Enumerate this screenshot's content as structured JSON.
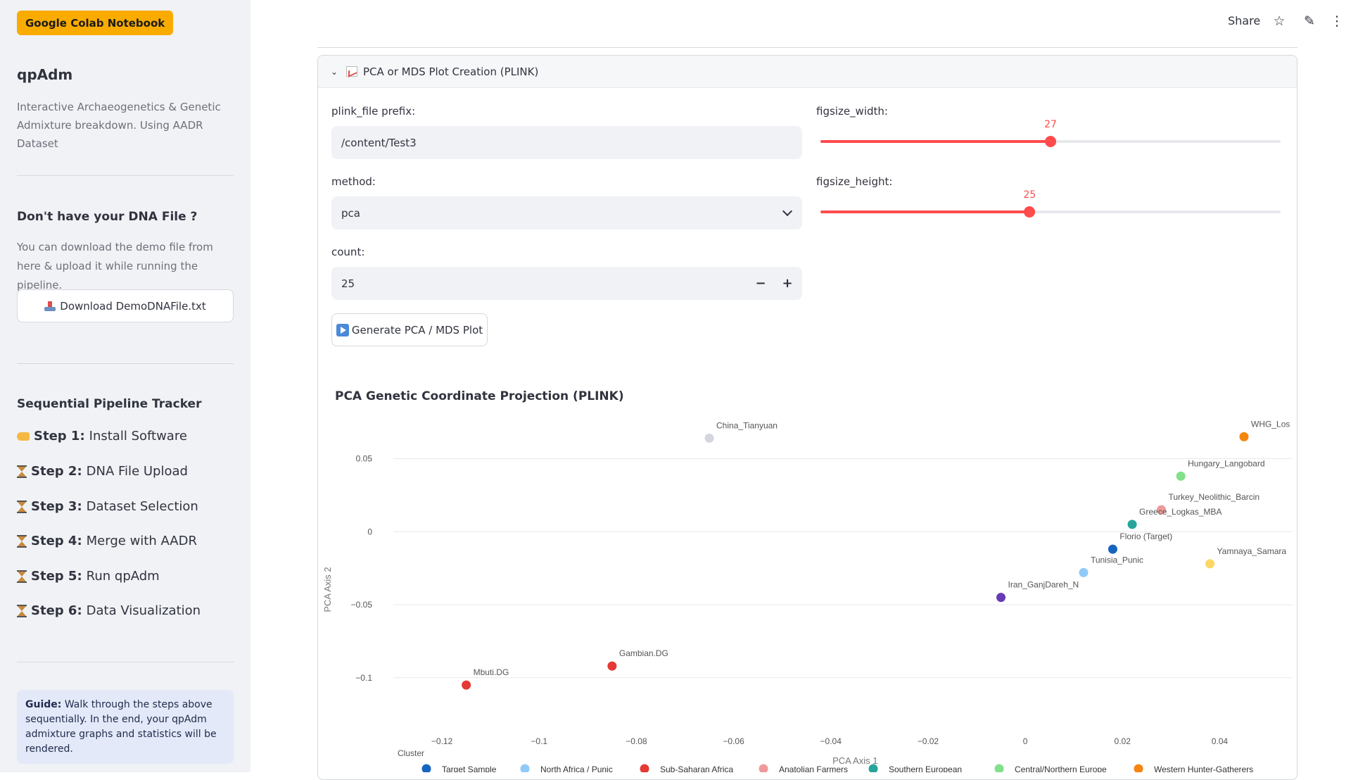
{
  "sidebar": {
    "badge": "Google Colab Notebook",
    "app_title": "qpAdm",
    "app_description": "Interactive Archaeogenetics & Genetic Admixture breakdown. Using AADR Dataset",
    "dna_heading": "Don't have your DNA File ?",
    "dna_text": "You can download the demo file from here & upload it while running the pipeline.",
    "download_button": "Download DemoDNAFile.txt",
    "tracker_heading": "Sequential Pipeline Tracker",
    "steps": [
      {
        "num": "Step 1:",
        "label": "Install Software",
        "icon": "pointing-hand-icon"
      },
      {
        "num": "Step 2:",
        "label": "DNA File Upload",
        "icon": "hourglass-icon"
      },
      {
        "num": "Step 3:",
        "label": "Dataset Selection",
        "icon": "hourglass-icon"
      },
      {
        "num": "Step 4:",
        "label": "Merge with AADR",
        "icon": "hourglass-icon"
      },
      {
        "num": "Step 5:",
        "label": "Run qpAdm",
        "icon": "hourglass-icon"
      },
      {
        "num": "Step 6:",
        "label": "Data Visualization",
        "icon": "hourglass-icon"
      }
    ],
    "guide_bold": "Guide:",
    "guide_text": " Walk through the steps above sequentially. In the end, your qpAdm admixture graphs and statistics will be rendered."
  },
  "toolbar": {
    "share_label": "Share",
    "icons": [
      "star-icon",
      "edit-pencil-icon",
      "more-vertical-icon"
    ]
  },
  "expander": {
    "title": "PCA or MDS Plot Creation (PLINK)",
    "expanded": true
  },
  "form": {
    "plink_label": "plink_file prefix:",
    "plink_value": "/content/Test3",
    "method_label": "method:",
    "method_value": "pca",
    "count_label": "count:",
    "count_value": "25",
    "minus": "−",
    "plus": "+",
    "generate_button": "Generate PCA / MDS Plot",
    "width_label": "figsize_width:",
    "width_value": "27",
    "width_fraction": 0.5,
    "height_label": "figsize_height:",
    "height_value": "25",
    "height_fraction": 0.4545
  },
  "chart_data": {
    "type": "scatter",
    "title": "PCA Genetic Coordinate Projection (PLINK)",
    "xlabel": "PCA Axis 1",
    "ylabel": "PCA Axis 2",
    "xlim": [
      -0.13,
      0.055
    ],
    "ylim": [
      -0.13,
      0.07
    ],
    "x_ticks": [
      -0.12,
      -0.1,
      -0.08,
      -0.06,
      -0.04,
      -0.02,
      0,
      0.02,
      0.04
    ],
    "x_tick_labels": [
      "−0.12",
      "−0.1",
      "−0.08",
      "−0.06",
      "−0.04",
      "−0.02",
      "0",
      "0.02",
      "0.04"
    ],
    "y_ticks": [
      0.05,
      0,
      -0.05,
      -0.1
    ],
    "y_tick_labels": [
      "0.05",
      "0",
      "−0.05",
      "−0.1"
    ],
    "grid": true,
    "legend_title": "Cluster",
    "legend_position": "bottom",
    "legend": [
      {
        "name": "Target Sample",
        "color": "#1565c0"
      },
      {
        "name": "North Africa / Punic",
        "color": "#90caf9"
      },
      {
        "name": "Sub-Saharan Africa",
        "color": "#e53935"
      },
      {
        "name": "Anatolian Farmers",
        "color": "#ef9a9a"
      },
      {
        "name": "Southern European",
        "color": "#26a69a"
      },
      {
        "name": "Central/Northern Europe",
        "color": "#81e08a"
      },
      {
        "name": "Western Hunter-Gatherers",
        "color": "#f5850f"
      }
    ],
    "points": [
      {
        "label": "China_Tianyuan",
        "x": -0.065,
        "y": 0.064,
        "color": "#d3d6e0"
      },
      {
        "label": "WHG_Los",
        "x": 0.045,
        "y": 0.065,
        "color": "#f5850f"
      },
      {
        "label": "Hungary_Langobard",
        "x": 0.032,
        "y": 0.038,
        "color": "#81e08a"
      },
      {
        "label": "Turkey_Neolithic_Barcin",
        "x": 0.028,
        "y": 0.015,
        "color": "#ef9a9a"
      },
      {
        "label": "Greece_Logkas_MBA",
        "x": 0.022,
        "y": 0.005,
        "color": "#26a69a"
      },
      {
        "label": "Florio (Target)",
        "x": 0.018,
        "y": -0.012,
        "color": "#1565c0"
      },
      {
        "label": "Tunisia_Punic",
        "x": 0.012,
        "y": -0.028,
        "color": "#90caf9"
      },
      {
        "label": "Yamnaya_Samara",
        "x": 0.038,
        "y": -0.022,
        "color": "#fdd663"
      },
      {
        "label": "Iran_GanjDareh_N",
        "x": -0.005,
        "y": -0.045,
        "color": "#673ab7"
      },
      {
        "label": "Gambian.DG",
        "x": -0.085,
        "y": -0.092,
        "color": "#e53935"
      },
      {
        "label": "Mbuti.DG",
        "x": -0.115,
        "y": -0.105,
        "color": "#e53935"
      }
    ]
  }
}
